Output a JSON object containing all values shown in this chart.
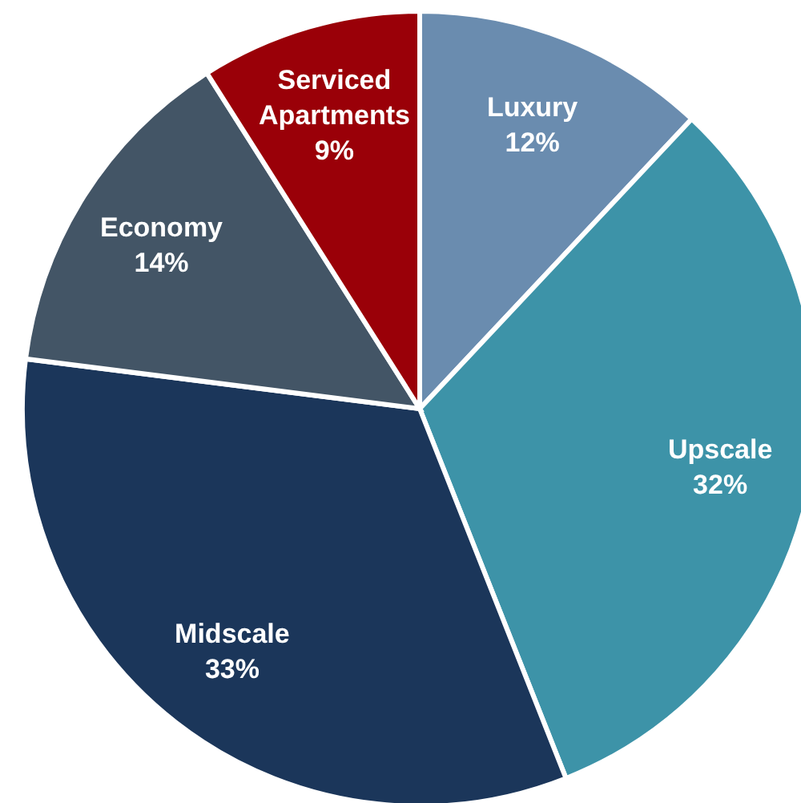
{
  "chart_data": {
    "type": "pie",
    "categories": [
      "Luxury",
      "Upscale",
      "Midscale",
      "Economy",
      "Serviced Apartments"
    ],
    "values": [
      12,
      32,
      33,
      14,
      9
    ],
    "value_labels": [
      "12%",
      "32%",
      "33%",
      "14%",
      "9%"
    ],
    "colors": [
      "#6a8caf",
      "#3d93a8",
      "#1b365a",
      "#435566",
      "#9a0008"
    ],
    "legend": false
  }
}
